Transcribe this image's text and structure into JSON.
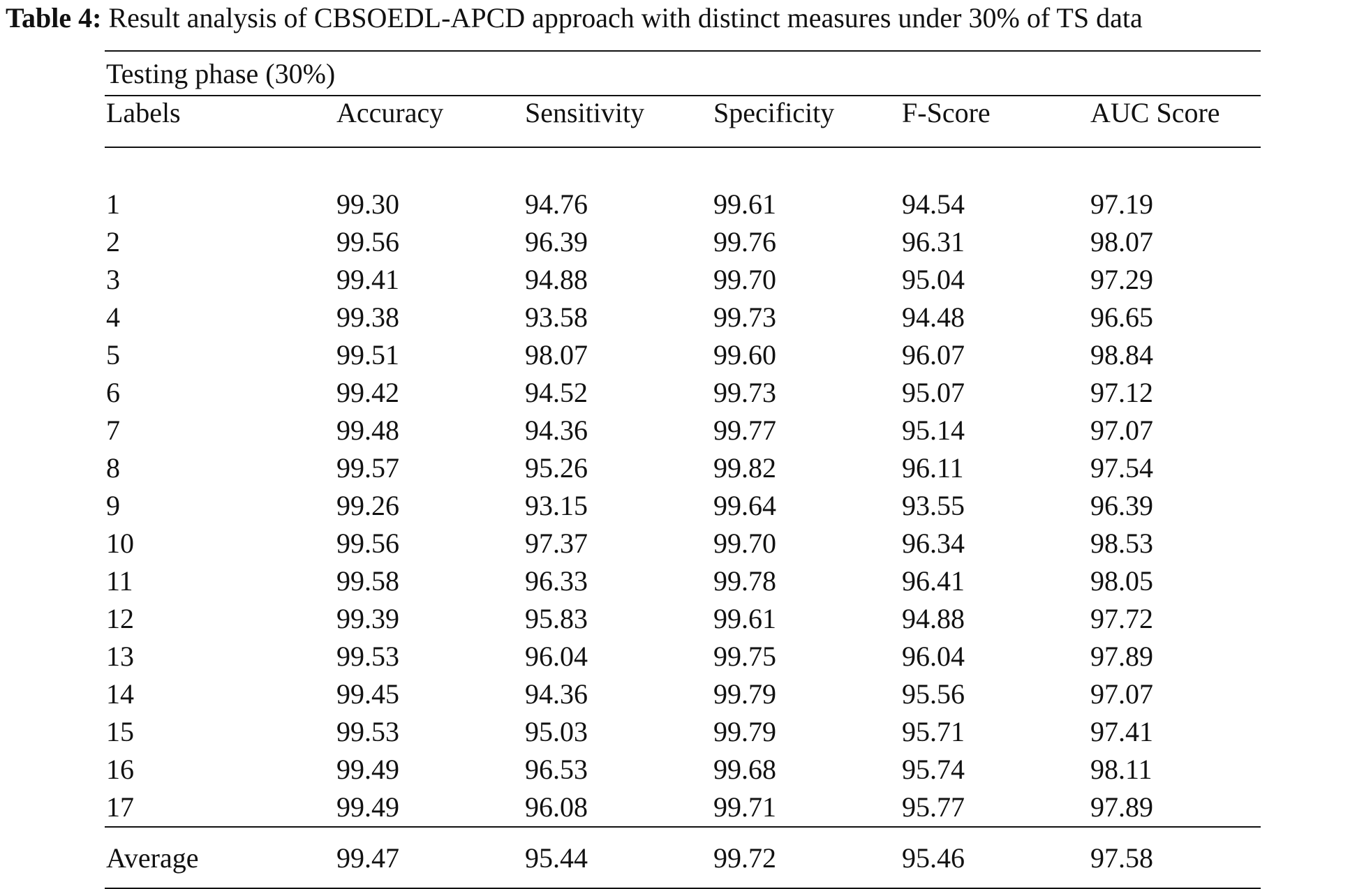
{
  "caption": {
    "label": "Table 4:",
    "text": " Result analysis of CBSOEDL-APCD approach with distinct measures under 30% of TS data"
  },
  "table": {
    "phase": "Testing phase (30%)",
    "columns": [
      "Labels",
      "Accuracy",
      "Sensitivity",
      "Specificity",
      "F-Score",
      "AUC Score"
    ],
    "rows": [
      [
        "1",
        "99.30",
        "94.76",
        "99.61",
        "94.54",
        "97.19"
      ],
      [
        "2",
        "99.56",
        "96.39",
        "99.76",
        "96.31",
        "98.07"
      ],
      [
        "3",
        "99.41",
        "94.88",
        "99.70",
        "95.04",
        "97.29"
      ],
      [
        "4",
        "99.38",
        "93.58",
        "99.73",
        "94.48",
        "96.65"
      ],
      [
        "5",
        "99.51",
        "98.07",
        "99.60",
        "96.07",
        "98.84"
      ],
      [
        "6",
        "99.42",
        "94.52",
        "99.73",
        "95.07",
        "97.12"
      ],
      [
        "7",
        "99.48",
        "94.36",
        "99.77",
        "95.14",
        "97.07"
      ],
      [
        "8",
        "99.57",
        "95.26",
        "99.82",
        "96.11",
        "97.54"
      ],
      [
        "9",
        "99.26",
        "93.15",
        "99.64",
        "93.55",
        "96.39"
      ],
      [
        "10",
        "99.56",
        "97.37",
        "99.70",
        "96.34",
        "98.53"
      ],
      [
        "11",
        "99.58",
        "96.33",
        "99.78",
        "96.41",
        "98.05"
      ],
      [
        "12",
        "99.39",
        "95.83",
        "99.61",
        "94.88",
        "97.72"
      ],
      [
        "13",
        "99.53",
        "96.04",
        "99.75",
        "96.04",
        "97.89"
      ],
      [
        "14",
        "99.45",
        "94.36",
        "99.79",
        "95.56",
        "97.07"
      ],
      [
        "15",
        "99.53",
        "95.03",
        "99.79",
        "95.71",
        "97.41"
      ],
      [
        "16",
        "99.49",
        "96.53",
        "99.68",
        "95.74",
        "98.11"
      ],
      [
        "17",
        "99.49",
        "96.08",
        "99.71",
        "95.77",
        "97.89"
      ]
    ],
    "average": [
      "Average",
      "99.47",
      "95.44",
      "99.72",
      "95.46",
      "97.58"
    ]
  }
}
